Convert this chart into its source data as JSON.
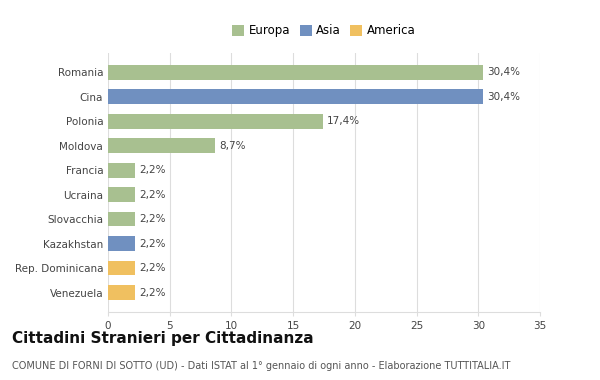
{
  "countries": [
    "Romania",
    "Cina",
    "Polonia",
    "Moldova",
    "Francia",
    "Ucraina",
    "Slovacchia",
    "Kazakhstan",
    "Rep. Dominicana",
    "Venezuela"
  ],
  "values": [
    30.4,
    30.4,
    17.4,
    8.7,
    2.2,
    2.2,
    2.2,
    2.2,
    2.2,
    2.2
  ],
  "labels": [
    "30,4%",
    "30,4%",
    "17,4%",
    "8,7%",
    "2,2%",
    "2,2%",
    "2,2%",
    "2,2%",
    "2,2%",
    "2,2%"
  ],
  "continents": [
    "Europa",
    "Asia",
    "Europa",
    "Europa",
    "Europa",
    "Europa",
    "Europa",
    "Asia",
    "America",
    "America"
  ],
  "colors": {
    "Europa": "#a8c090",
    "Asia": "#7090c0",
    "America": "#f0c060"
  },
  "legend_labels": [
    "Europa",
    "Asia",
    "America"
  ],
  "legend_colors": [
    "#a8c090",
    "#7090c0",
    "#f0c060"
  ],
  "xlim": [
    0,
    35
  ],
  "xticks": [
    0,
    5,
    10,
    15,
    20,
    25,
    30,
    35
  ],
  "title": "Cittadini Stranieri per Cittadinanza",
  "subtitle": "COMUNE DI FORNI DI SOTTO (UD) - Dati ISTAT al 1° gennaio di ogni anno - Elaborazione TUTTITALIA.IT",
  "background_color": "#ffffff",
  "grid_color": "#dddddd",
  "bar_height": 0.6,
  "title_fontsize": 11,
  "subtitle_fontsize": 7,
  "label_fontsize": 7.5,
  "tick_fontsize": 7.5,
  "legend_fontsize": 8.5
}
